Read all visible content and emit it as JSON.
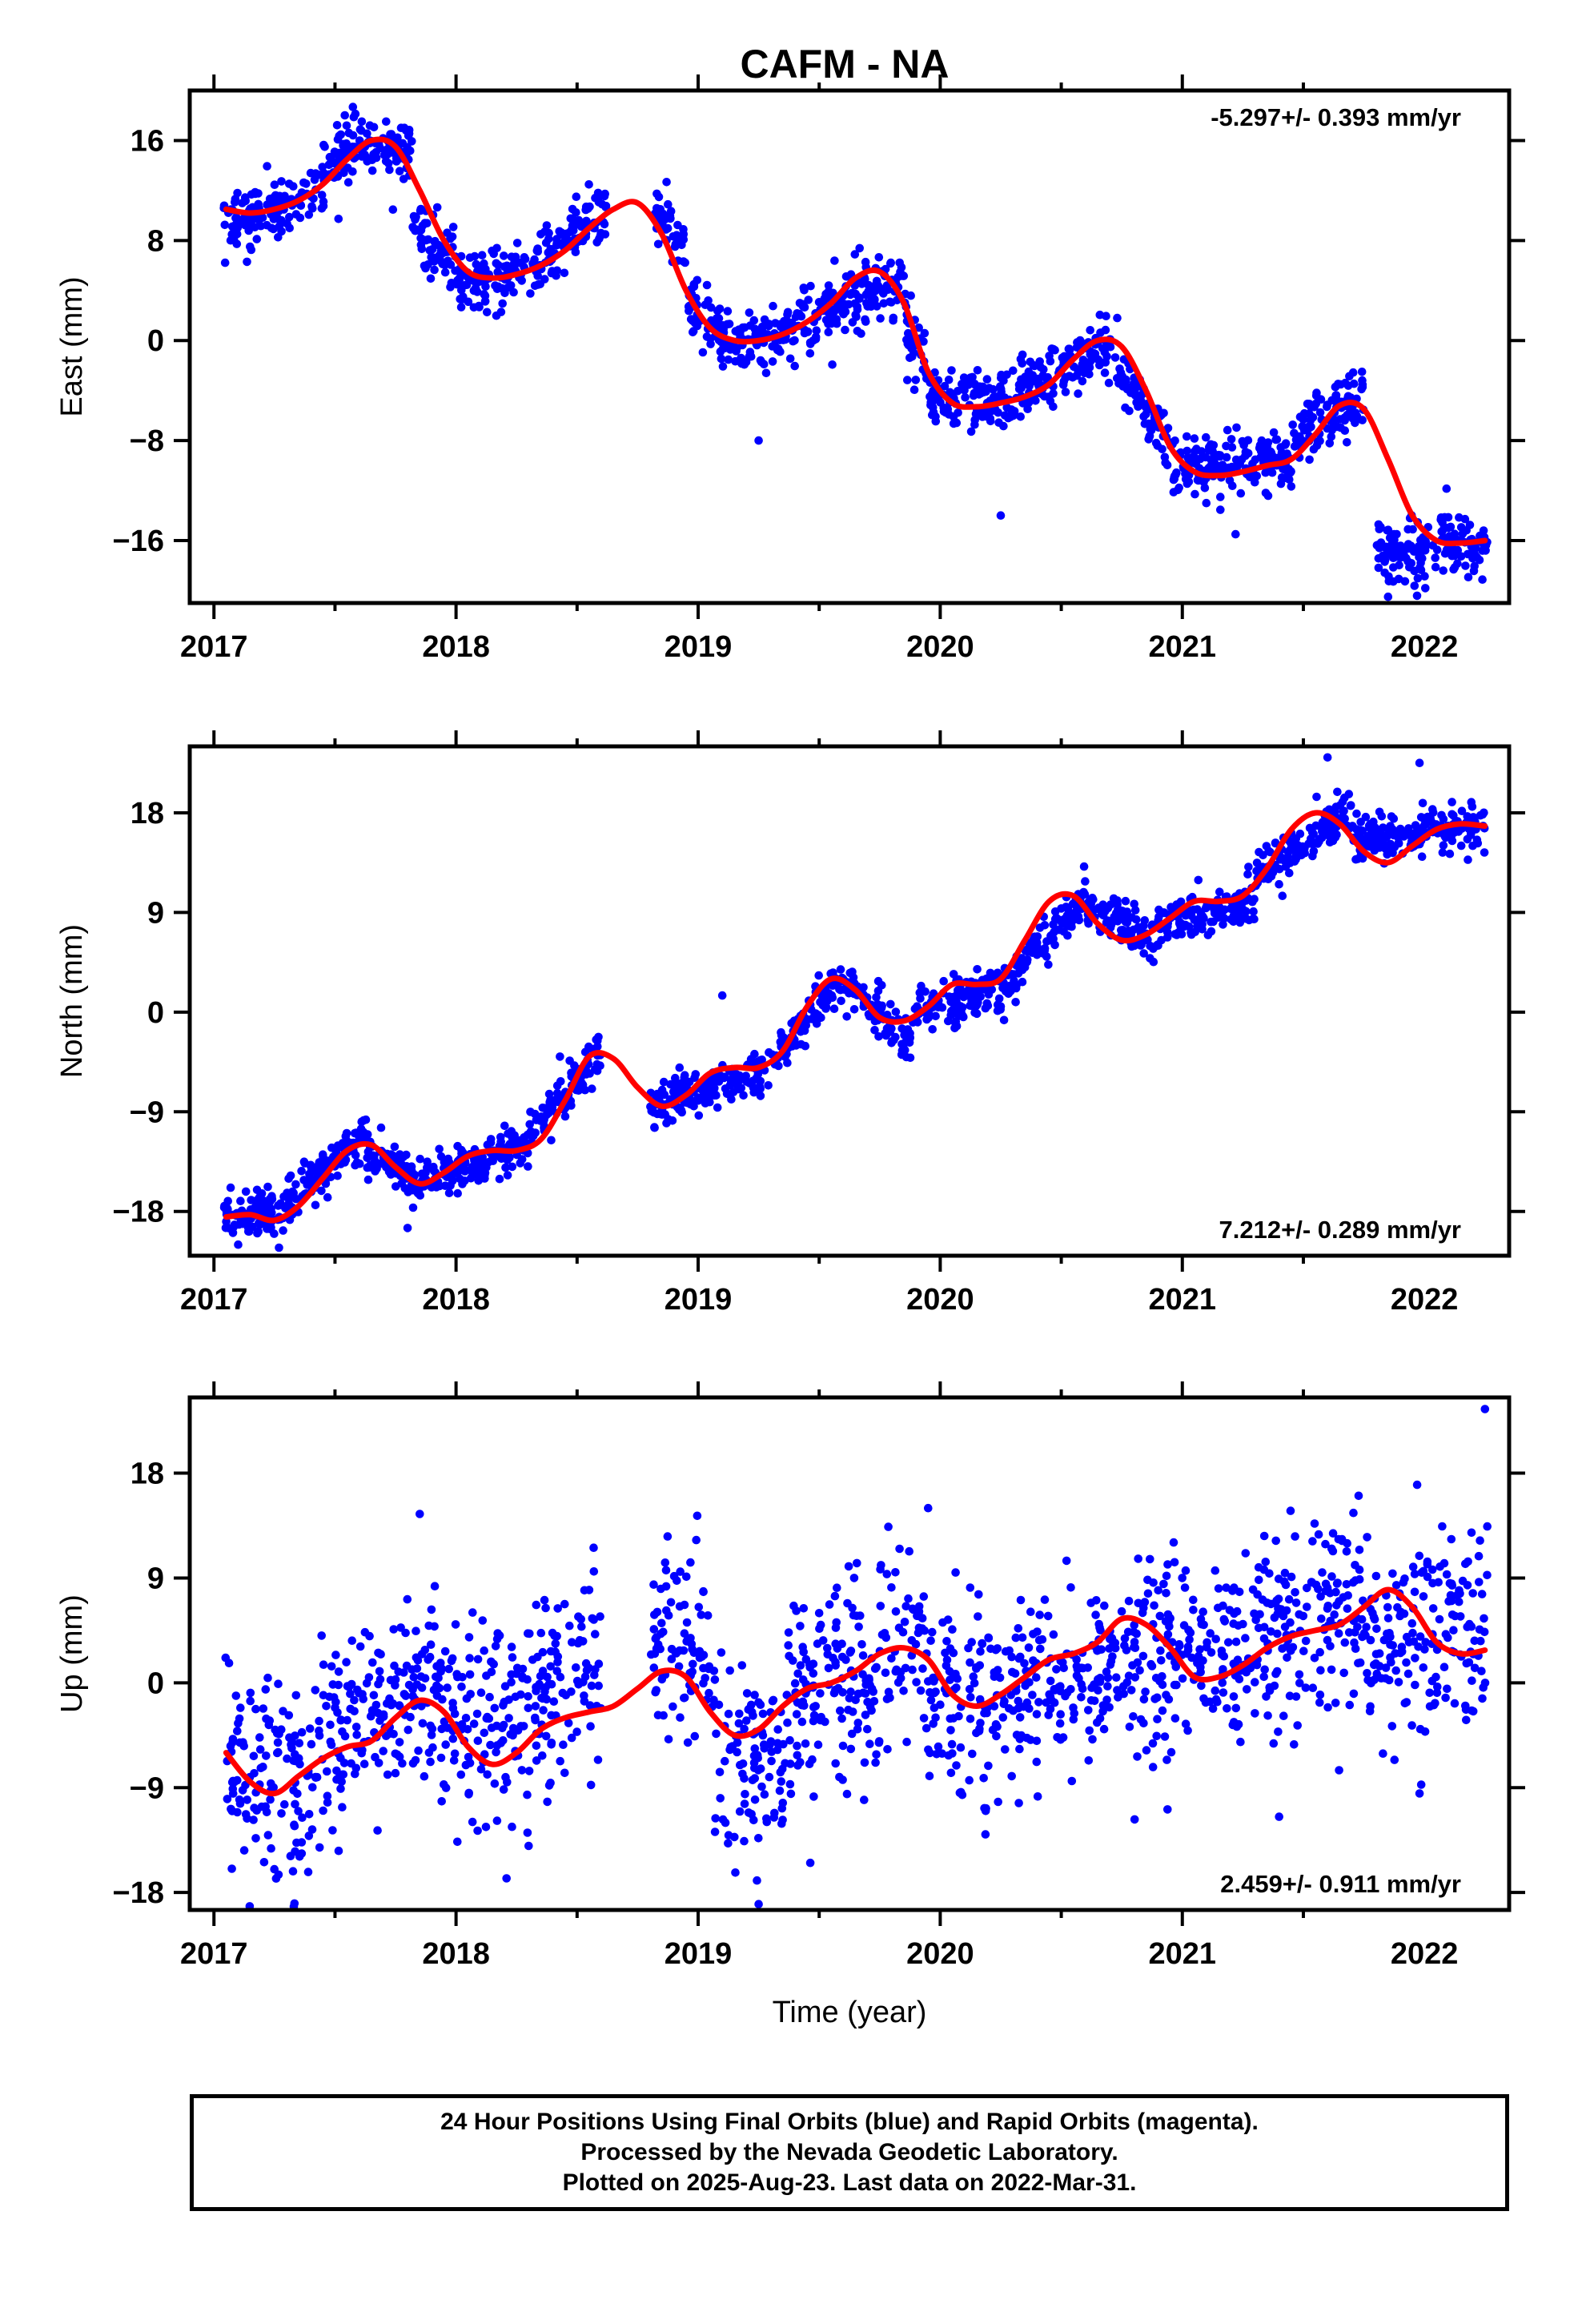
{
  "title": "CAFM - NA",
  "colors": {
    "final_orbits": "#0000ff",
    "model": "#ff0000",
    "rapid_orbits": "#ff00ff"
  },
  "footer": {
    "lines": [
      "24 Hour Positions Using Final Orbits (blue) and Rapid Orbits (magenta).",
      "Processed by the Nevada Geodetic Laboratory.",
      "Plotted on 2025-Aug-23. Last data on 2022-Mar-31."
    ]
  },
  "chart_data": [
    {
      "type": "scatter",
      "component": "East",
      "ylabel": "East (mm)",
      "xlabel": "",
      "xlim": [
        2016.9,
        2022.35
      ],
      "ylim": [
        -21,
        20
      ],
      "x_ticks": [
        2017,
        2018,
        2019,
        2020,
        2021,
        2022
      ],
      "x_tick_labels": [
        "2017",
        "2018",
        "2019",
        "2020",
        "2021",
        "2022"
      ],
      "y_ticks": [
        16,
        8,
        0,
        -8,
        -16
      ],
      "y_tick_labels": [
        "16",
        "8",
        "0",
        "−8",
        "−16"
      ],
      "rate": "-5.297+/- 0.393 mm/yr",
      "rate_position": "top-right",
      "grid": false,
      "scatter_sigma": 1.2,
      "model": {
        "x": [
          2017.05,
          2017.15,
          2017.25,
          2017.35,
          2017.45,
          2017.55,
          2017.65,
          2017.75,
          2017.85,
          2017.95,
          2018.05,
          2018.15,
          2018.25,
          2018.35,
          2018.45,
          2018.55,
          2018.65,
          2018.75,
          2018.85,
          2018.95,
          2019.05,
          2019.15,
          2019.25,
          2019.35,
          2019.45,
          2019.55,
          2019.65,
          2019.75,
          2019.85,
          2019.95,
          2020.05,
          2020.15,
          2020.25,
          2020.35,
          2020.45,
          2020.55,
          2020.65,
          2020.75,
          2020.85,
          2020.95,
          2021.05,
          2021.15,
          2021.25,
          2021.35,
          2021.45,
          2021.55,
          2021.65,
          2021.75,
          2021.85,
          2021.95,
          2022.05,
          2022.15,
          2022.25
        ],
        "y": [
          10.5,
          10.2,
          10.5,
          11.2,
          12.5,
          14.5,
          16,
          15.5,
          12,
          8,
          5.5,
          5,
          5.3,
          6,
          7.2,
          9,
          10.5,
          11,
          8.5,
          4,
          1,
          0,
          0,
          0.5,
          1.5,
          3,
          5,
          5.5,
          3,
          -2.5,
          -5,
          -5.3,
          -5,
          -4.5,
          -3.5,
          -1.5,
          0,
          -0.5,
          -4,
          -8.5,
          -10.5,
          -10.8,
          -10.5,
          -10,
          -9.5,
          -7.5,
          -5.2,
          -5.5,
          -9.5,
          -14,
          -16,
          -16.2,
          -16
        ]
      },
      "segments": [
        {
          "x0": 2017.04,
          "x1": 2017.35,
          "y0": 9.5,
          "y1": 11
        },
        {
          "x0": 2017.35,
          "x1": 2017.58,
          "y0": 11,
          "y1": 16
        },
        {
          "x0": 2017.58,
          "x1": 2017.82,
          "y0": 16.5,
          "y1": 15
        },
        {
          "x0": 2017.82,
          "x1": 2018.0,
          "y0": 9,
          "y1": 6
        },
        {
          "x0": 2018.0,
          "x1": 2018.35,
          "y0": 4.5,
          "y1": 6
        },
        {
          "x0": 2018.35,
          "x1": 2018.62,
          "y0": 6.5,
          "y1": 10.5
        },
        {
          "x0": 2018.82,
          "x1": 2018.95,
          "y0": 10.5,
          "y1": 7.5
        },
        {
          "x0": 2018.95,
          "x1": 2019.1,
          "y0": 3,
          "y1": 1
        },
        {
          "x0": 2019.1,
          "x1": 2019.4,
          "y0": 0,
          "y1": 0.5
        },
        {
          "x0": 2019.4,
          "x1": 2019.85,
          "y0": 1.5,
          "y1": 5
        },
        {
          "x0": 2019.85,
          "x1": 2019.95,
          "y0": 1,
          "y1": -3
        },
        {
          "x0": 2019.95,
          "x1": 2020.3,
          "y0": -4.5,
          "y1": -5
        },
        {
          "x0": 2020.3,
          "x1": 2020.72,
          "y0": -4.5,
          "y1": 0
        },
        {
          "x0": 2020.72,
          "x1": 2020.95,
          "y0": -2,
          "y1": -8.5
        },
        {
          "x0": 2020.95,
          "x1": 2021.45,
          "y0": -10,
          "y1": -9.5
        },
        {
          "x0": 2021.45,
          "x1": 2021.75,
          "y0": -8,
          "y1": -4
        },
        {
          "x0": 2021.8,
          "x1": 2022.05,
          "y0": -16.2,
          "y1": -17.5
        },
        {
          "x0": 2022.05,
          "x1": 2022.26,
          "y0": -15.5,
          "y1": -16.5
        }
      ],
      "outliers": [
        [
          2019.25,
          -8
        ],
        [
          2020.25,
          -14
        ],
        [
          2021.22,
          -15.5
        ],
        [
          2021.85,
          -20.5
        ]
      ]
    },
    {
      "type": "scatter",
      "component": "North",
      "ylabel": "North (mm)",
      "xlabel": "",
      "xlim": [
        2016.9,
        2022.35
      ],
      "ylim": [
        -22,
        24
      ],
      "x_ticks": [
        2017,
        2018,
        2019,
        2020,
        2021,
        2022
      ],
      "x_tick_labels": [
        "2017",
        "2018",
        "2019",
        "2020",
        "2021",
        "2022"
      ],
      "y_ticks": [
        18,
        9,
        0,
        -9,
        -18
      ],
      "y_tick_labels": [
        "18",
        "9",
        "0",
        "−9",
        "−18"
      ],
      "rate": "7.212+/- 0.289 mm/yr",
      "rate_position": "bottom-right",
      "grid": false,
      "scatter_sigma": 1.0,
      "model": {
        "x": [
          2017.05,
          2017.15,
          2017.25,
          2017.35,
          2017.45,
          2017.55,
          2017.65,
          2017.75,
          2017.85,
          2017.95,
          2018.05,
          2018.15,
          2018.25,
          2018.35,
          2018.45,
          2018.55,
          2018.65,
          2018.75,
          2018.85,
          2018.95,
          2019.05,
          2019.15,
          2019.25,
          2019.35,
          2019.45,
          2019.55,
          2019.65,
          2019.75,
          2019.85,
          2019.95,
          2020.05,
          2020.15,
          2020.25,
          2020.35,
          2020.45,
          2020.55,
          2020.65,
          2020.75,
          2020.85,
          2020.95,
          2021.05,
          2021.15,
          2021.25,
          2021.35,
          2021.45,
          2021.55,
          2021.65,
          2021.75,
          2021.85,
          2021.95,
          2022.05,
          2022.15,
          2022.25
        ],
        "y": [
          -18.5,
          -18.3,
          -18.8,
          -17.5,
          -15,
          -12.5,
          -12,
          -14,
          -15.5,
          -14.5,
          -13,
          -12.5,
          -12.5,
          -11.5,
          -8,
          -4,
          -4.2,
          -6.8,
          -8.5,
          -7.5,
          -5.5,
          -5,
          -5,
          -3.5,
          0.5,
          3,
          2,
          -0.5,
          -0.8,
          0.5,
          2.5,
          2.5,
          3,
          6.5,
          10,
          10.5,
          8,
          6.5,
          7,
          8.5,
          10,
          10,
          10.5,
          13,
          16.5,
          18,
          17,
          14.5,
          13.5,
          15,
          16.5,
          17,
          16.8
        ]
      },
      "segments": [
        {
          "x0": 2017.04,
          "x1": 2017.3,
          "y0": -18.5,
          "y1": -18
        },
        {
          "x0": 2017.3,
          "x1": 2017.62,
          "y0": -17.5,
          "y1": -11
        },
        {
          "x0": 2017.62,
          "x1": 2017.85,
          "y0": -12,
          "y1": -15.5
        },
        {
          "x0": 2017.85,
          "x1": 2018.3,
          "y0": -15,
          "y1": -12
        },
        {
          "x0": 2018.3,
          "x1": 2018.6,
          "y0": -11,
          "y1": -3.5
        },
        {
          "x0": 2018.8,
          "x1": 2019.3,
          "y0": -8.5,
          "y1": -5.5
        },
        {
          "x0": 2019.3,
          "x1": 2019.6,
          "y0": -4.5,
          "y1": 3
        },
        {
          "x0": 2019.6,
          "x1": 2019.88,
          "y0": 2.5,
          "y1": -2.5
        },
        {
          "x0": 2019.88,
          "x1": 2020.32,
          "y0": 0,
          "y1": 2.5
        },
        {
          "x0": 2020.32,
          "x1": 2020.6,
          "y0": 4,
          "y1": 10.5
        },
        {
          "x0": 2020.6,
          "x1": 2020.9,
          "y0": 9.5,
          "y1": 6.5
        },
        {
          "x0": 2020.9,
          "x1": 2021.3,
          "y0": 8,
          "y1": 10
        },
        {
          "x0": 2021.3,
          "x1": 2021.7,
          "y0": 12,
          "y1": 18
        },
        {
          "x0": 2021.7,
          "x1": 2022.26,
          "y0": 15.5,
          "y1": 17
        }
      ],
      "outliers": [
        [
          2019.1,
          1.5
        ],
        [
          2017.1,
          -21
        ],
        [
          2021.6,
          23
        ],
        [
          2021.98,
          22.5
        ],
        [
          2017.8,
          -19.5
        ]
      ]
    },
    {
      "type": "scatter",
      "component": "Up",
      "ylabel": "Up (mm)",
      "xlabel": "Time (year)",
      "xlim": [
        2016.9,
        2022.35
      ],
      "ylim": [
        -19.5,
        24.5
      ],
      "x_ticks": [
        2017,
        2018,
        2019,
        2020,
        2021,
        2022
      ],
      "x_tick_labels": [
        "2017",
        "2018",
        "2019",
        "2020",
        "2021",
        "2022"
      ],
      "y_ticks": [
        18,
        9,
        0,
        -9,
        -18
      ],
      "y_tick_labels": [
        "18",
        "9",
        "0",
        "−9",
        "−18"
      ],
      "rate": "2.459+/- 0.911 mm/yr",
      "rate_position": "bottom-right",
      "grid": false,
      "scatter_sigma": 4.2,
      "model": {
        "x": [
          2017.05,
          2017.15,
          2017.25,
          2017.35,
          2017.45,
          2017.55,
          2017.65,
          2017.75,
          2017.85,
          2017.95,
          2018.05,
          2018.15,
          2018.25,
          2018.35,
          2018.45,
          2018.55,
          2018.65,
          2018.75,
          2018.85,
          2018.95,
          2019.05,
          2019.15,
          2019.25,
          2019.35,
          2019.45,
          2019.55,
          2019.65,
          2019.75,
          2019.85,
          2019.95,
          2020.05,
          2020.15,
          2020.25,
          2020.35,
          2020.45,
          2020.55,
          2020.65,
          2020.75,
          2020.85,
          2020.95,
          2021.05,
          2021.15,
          2021.25,
          2021.35,
          2021.45,
          2021.55,
          2021.65,
          2021.75,
          2021.85,
          2021.95,
          2022.05,
          2022.15,
          2022.25
        ],
        "y": [
          -6,
          -8.5,
          -9.5,
          -8,
          -6.5,
          -5.5,
          -5,
          -3,
          -1.5,
          -2.5,
          -5.5,
          -7,
          -6,
          -4,
          -3,
          -2.5,
          -2,
          -0.5,
          1,
          0.5,
          -2.5,
          -4.5,
          -4,
          -2,
          -0.5,
          0,
          1,
          2.5,
          3,
          2,
          -1,
          -2,
          -1,
          0.5,
          2,
          2.5,
          3.5,
          5.5,
          5,
          3,
          0.5,
          0.5,
          1.5,
          3,
          4,
          4.5,
          5,
          6.5,
          8,
          6.5,
          3.5,
          2.5,
          2.8
        ]
      },
      "segments": [
        {
          "x0": 2017.04,
          "x1": 2017.4,
          "y0": -7,
          "y1": -9
        },
        {
          "x0": 2017.4,
          "x1": 2017.85,
          "y0": -6,
          "y1": -1
        },
        {
          "x0": 2017.85,
          "x1": 2018.25,
          "y0": -1.5,
          "y1": -4
        },
        {
          "x0": 2018.25,
          "x1": 2018.6,
          "y0": -3,
          "y1": 2
        },
        {
          "x0": 2018.8,
          "x1": 2019.05,
          "y0": 5,
          "y1": 1
        },
        {
          "x0": 2019.05,
          "x1": 2019.35,
          "y0": -6,
          "y1": -8
        },
        {
          "x0": 2019.35,
          "x1": 2019.95,
          "y0": -2,
          "y1": 3
        },
        {
          "x0": 2019.95,
          "x1": 2020.35,
          "y0": -2,
          "y1": -1
        },
        {
          "x0": 2020.35,
          "x1": 2021.0,
          "y0": 0,
          "y1": 3
        },
        {
          "x0": 2021.0,
          "x1": 2021.5,
          "y0": 1,
          "y1": 4
        },
        {
          "x0": 2021.5,
          "x1": 2022.26,
          "y0": 5,
          "y1": 4
        }
      ],
      "outliers": [
        [
          2022.25,
          23.5
        ],
        [
          2017.85,
          14.5
        ],
        [
          2021.97,
          17
        ],
        [
          2019.95,
          15
        ],
        [
          2021.98,
          -9.5
        ],
        [
          2019.25,
          -19
        ],
        [
          2021.4,
          -11.5
        ],
        [
          2018.3,
          -14
        ]
      ]
    }
  ]
}
